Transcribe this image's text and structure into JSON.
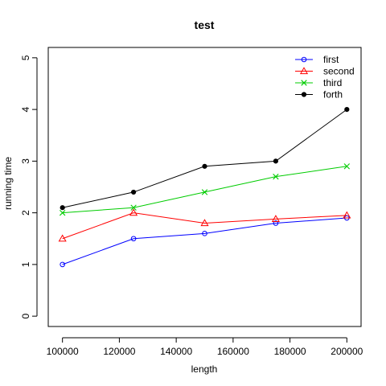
{
  "chart_data": {
    "type": "line",
    "title": "test",
    "xlabel": "length",
    "ylabel": "running time",
    "x": [
      100000,
      125000,
      150000,
      175000,
      200000
    ],
    "xlim": [
      95000,
      205000
    ],
    "ylim": [
      -0.2,
      5.2
    ],
    "xticks": [
      100000,
      120000,
      140000,
      160000,
      180000,
      200000
    ],
    "yticks": [
      0,
      1,
      2,
      3,
      4,
      5
    ],
    "grid": false,
    "legend": "top-right",
    "series": [
      {
        "name": "first",
        "color": "#0000ff",
        "marker": "circle-open",
        "values": [
          1.0,
          1.5,
          1.6,
          1.8,
          1.9
        ]
      },
      {
        "name": "second",
        "color": "#ff0000",
        "marker": "triangle-open",
        "values": [
          1.5,
          2.0,
          1.8,
          1.88,
          1.95
        ]
      },
      {
        "name": "third",
        "color": "#00cc00",
        "marker": "cross",
        "values": [
          2.0,
          2.1,
          2.4,
          2.7,
          2.9
        ]
      },
      {
        "name": "forth",
        "color": "#000000",
        "marker": "dot",
        "values": [
          2.1,
          2.4,
          2.9,
          3.0,
          4.0
        ]
      }
    ]
  }
}
